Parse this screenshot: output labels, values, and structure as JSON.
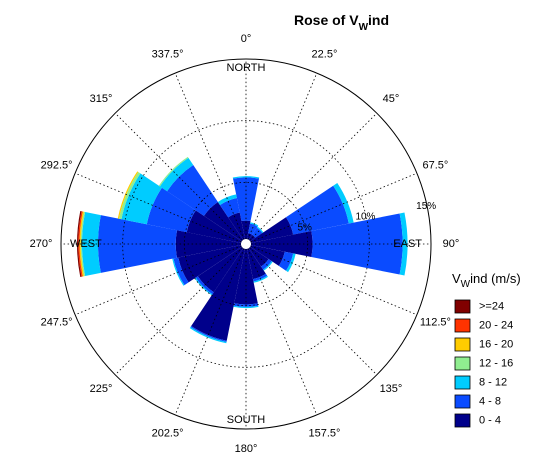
{
  "chart_data": {
    "type": "wind-rose",
    "title": {
      "main": "Rose of V",
      "sub": "W",
      "tail": "ind"
    },
    "direction_labels": [
      {
        "text": "NORTH",
        "angle": 0
      },
      {
        "text": "EAST",
        "angle": 90
      },
      {
        "text": "SOUTH",
        "angle": 180
      },
      {
        "text": "WEST",
        "angle": 270
      }
    ],
    "angle_ticks": [
      "0°",
      "22.5°",
      "45°",
      "67.5°",
      "90°",
      "112.5°",
      "135°",
      "157.5°",
      "180°",
      "202.5°",
      "225°",
      "247.5°",
      "270°",
      "292.5°",
      "315°",
      "337.5°"
    ],
    "radial_axis": {
      "unit": "%",
      "max": 15,
      "rings": [
        5,
        10,
        15
      ],
      "ring_labels": [
        "5%",
        "10%",
        "15%"
      ],
      "ring_label_angle": 80
    },
    "calm_radius": 0.4,
    "legend": {
      "title": {
        "main": "V",
        "sub": "W",
        "tail": "ind (m/s)"
      },
      "bins": [
        "0 - 4",
        "4 - 8",
        "8 - 12",
        "12 - 16",
        "16 - 20",
        "20 - 24",
        ">=24"
      ],
      "colors": [
        "#00008b",
        "#0a4bff",
        "#00ccff",
        "#90ee90",
        "#ffcc00",
        "#ff3300",
        "#800000"
      ]
    },
    "sector_width_deg": 22.5,
    "series": [
      {
        "direction": 0,
        "values": [
          1.5,
          3.5,
          0.1,
          0,
          0,
          0,
          0
        ]
      },
      {
        "direction": 22.5,
        "values": [
          0.5,
          0.8,
          0.1,
          0,
          0,
          0,
          0
        ]
      },
      {
        "direction": 45,
        "values": [
          0.5,
          0.7,
          0.1,
          0,
          0,
          0,
          0
        ]
      },
      {
        "direction": 67.5,
        "values": [
          3.5,
          4.6,
          0.4,
          0,
          0,
          0,
          0
        ]
      },
      {
        "direction": 90,
        "values": [
          5.0,
          7.3,
          0.4,
          0,
          0,
          0,
          0
        ]
      },
      {
        "direction": 112.5,
        "values": [
          2.8,
          0.7,
          0.2,
          0,
          0,
          0,
          0
        ]
      },
      {
        "direction": 135,
        "values": [
          1.8,
          0.3,
          0.1,
          0,
          0,
          0,
          0
        ]
      },
      {
        "direction": 157.5,
        "values": [
          2.5,
          0.2,
          0.1,
          0,
          0,
          0,
          0
        ]
      },
      {
        "direction": 180,
        "values": [
          4.5,
          0.2,
          0.1,
          0,
          0,
          0,
          0
        ]
      },
      {
        "direction": 202.5,
        "values": [
          7.6,
          0.1,
          0.1,
          0,
          0,
          0,
          0
        ]
      },
      {
        "direction": 225,
        "values": [
          4.3,
          0.2,
          0.1,
          0,
          0,
          0,
          0
        ]
      },
      {
        "direction": 247.5,
        "values": [
          5.2,
          0.4,
          0.1,
          0,
          0,
          0,
          0
        ]
      },
      {
        "direction": 270,
        "values": [
          5.3,
          6.3,
          1.3,
          0.1,
          0.1,
          0.1,
          0.1
        ]
      },
      {
        "direction": 292.5,
        "values": [
          4.5,
          3.3,
          2.1,
          0.2,
          0.1,
          0,
          0
        ]
      },
      {
        "direction": 315,
        "values": [
          3.7,
          3.6,
          0.7,
          0.1,
          0,
          0,
          0
        ]
      },
      {
        "direction": 337.5,
        "values": [
          2.2,
          1.2,
          0.3,
          0,
          0,
          0,
          0
        ]
      }
    ]
  }
}
